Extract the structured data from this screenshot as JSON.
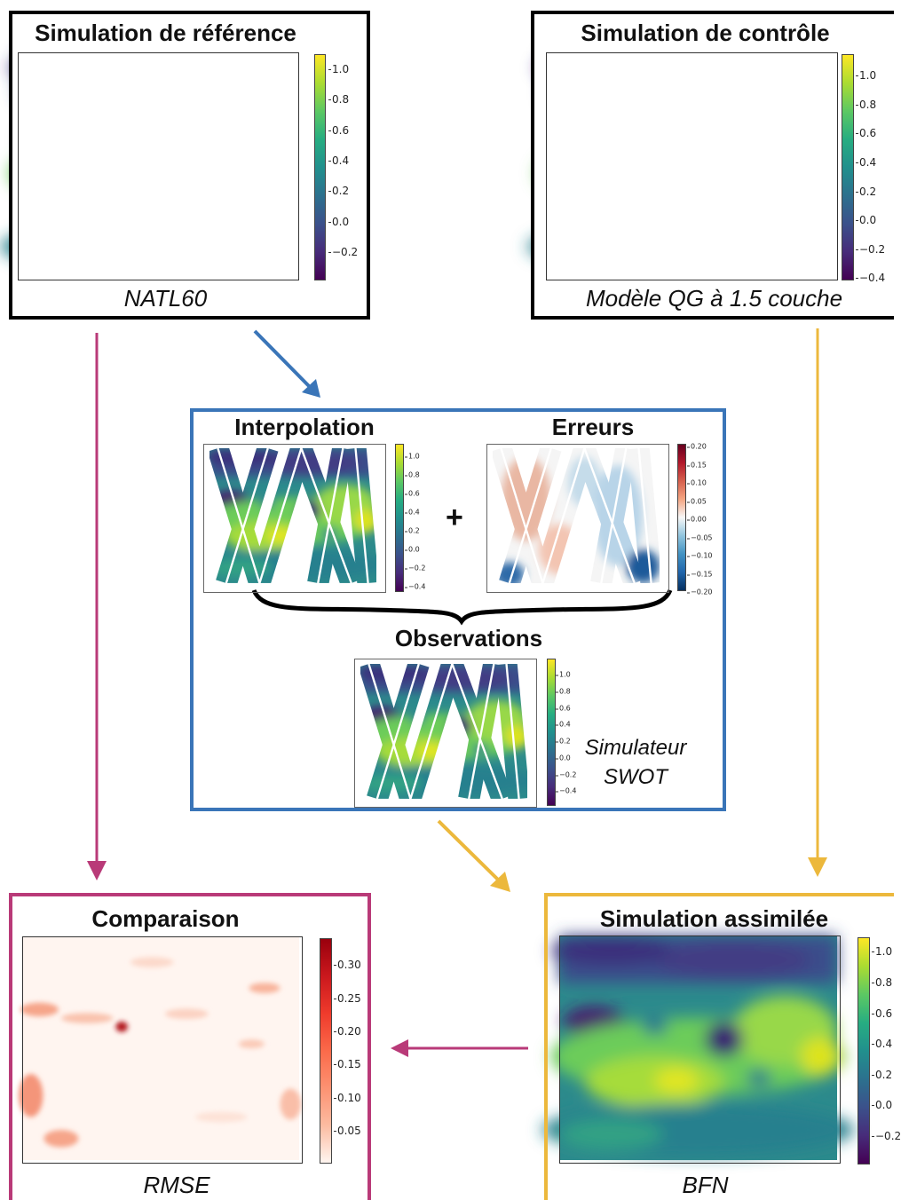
{
  "reference": {
    "title": "Simulation de référence",
    "subtitle": "NATL60",
    "cbar_ticks": [
      "1.0",
      "0.8",
      "0.6",
      "0.4",
      "0.2",
      "0.0",
      "−0.2"
    ]
  },
  "control": {
    "title": "Simulation de contrôle",
    "subtitle": "Modèle QG à 1.5 couche",
    "cbar_ticks": [
      "1.0",
      "0.8",
      "0.6",
      "0.4",
      "0.2",
      "0.0",
      "−0.2",
      "−0.4"
    ]
  },
  "observation_box": {
    "interp_title": "Interpolation",
    "interp_ticks": [
      "1.0",
      "0.8",
      "0.6",
      "0.4",
      "0.2",
      "0.0",
      "−0.2",
      "−0.4"
    ],
    "plus": "+",
    "errors_title": "Erreurs",
    "errors_ticks": [
      "0.20",
      "0.15",
      "0.10",
      "0.05",
      "0.00",
      "−0.05",
      "−0.10",
      "−0.15",
      "−0.20"
    ],
    "obs_title": "Observations",
    "obs_ticks": [
      "1.0",
      "0.8",
      "0.6",
      "0.4",
      "0.2",
      "0.0",
      "−0.2",
      "−0.4"
    ],
    "sim_label_1": "Simulateur",
    "sim_label_2": "SWOT"
  },
  "comparison": {
    "title": "Comparaison",
    "subtitle": "RMSE",
    "cbar_ticks": [
      "0.30",
      "0.25",
      "0.20",
      "0.15",
      "0.10",
      "0.05"
    ]
  },
  "assimilated": {
    "title": "Simulation assimilée",
    "subtitle": "BFN",
    "cbar_ticks": [
      "1.0",
      "0.8",
      "0.6",
      "0.4",
      "0.2",
      "0.0",
      "−0.2"
    ]
  },
  "colors": {
    "reference_border": "#000000",
    "observation_border": "#3a75b8",
    "comparison_border": "#b93a78",
    "assimilated_border": "#ecb83c",
    "arrow_blue": "#3a75b8",
    "arrow_magenta": "#b93a78",
    "arrow_yellow": "#ecb83c"
  }
}
